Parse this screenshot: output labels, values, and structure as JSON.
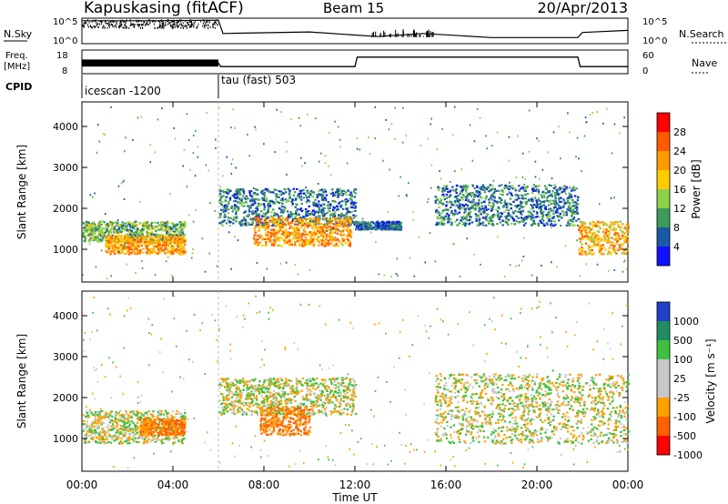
{
  "header": {
    "station": "Kapuskasing (fitACF)",
    "beam": "Beam 15",
    "date": "20/Apr/2013"
  },
  "top_panels": {
    "nsky_label": "N.Sky",
    "nsearch_label": "N.Search",
    "freq_label_1": "Freq.",
    "freq_label_2": "[MHz]",
    "nave_label": "Nave",
    "cpid_label": "CPID",
    "left_ticks_1": [
      "10^5",
      "10^0"
    ],
    "right_ticks_1": [
      "10^5",
      "10^0"
    ],
    "left_ticks_2": [
      "18",
      "8"
    ],
    "right_ticks_2": [
      "60",
      "0"
    ],
    "cpid_segments": [
      {
        "label": "icescan -1200",
        "start_hour": 0,
        "end_hour": 6
      },
      {
        "label": "tau (fast) 503",
        "start_hour": 6,
        "end_hour": 24
      }
    ]
  },
  "time_axis": {
    "label": "Time UT",
    "ticks": [
      "00:00",
      "04:00",
      "08:00",
      "12:00",
      "16:00",
      "20:00",
      "00:00"
    ],
    "tick_hours": [
      0,
      4,
      8,
      12,
      16,
      20,
      24
    ]
  },
  "range_axis": {
    "label": "Slant Range [km]",
    "ticks": [
      "1000",
      "2000",
      "3000",
      "4000"
    ],
    "tick_values": [
      1000,
      2000,
      3000,
      4000
    ],
    "ylim": [
      200,
      4600
    ]
  },
  "power_scale": {
    "label": "Power [dB]",
    "ticks": [
      "28",
      "24",
      "20",
      "16",
      "12",
      "8",
      "4"
    ],
    "colors": [
      "#ff0000",
      "#ff5a00",
      "#ff9a00",
      "#ffcc00",
      "#8fd24a",
      "#3c9a5a",
      "#1a5aa6",
      "#1010ff"
    ]
  },
  "velocity_scale": {
    "label": "Velocity [m s⁻¹]",
    "ticks": [
      "1000",
      "500",
      "100",
      "25",
      "-25",
      "-100",
      "-500",
      "-1000"
    ],
    "colors": [
      "#2040c8",
      "#208c60",
      "#40c040",
      "#c8c8c8",
      "#c8c8c8",
      "#ffa000",
      "#ff6000",
      "#ff0000"
    ]
  },
  "chart_data": [
    {
      "type": "line",
      "title": "N.Sky / N.Search",
      "xlim": [
        0,
        24
      ],
      "series": [
        {
          "name": "N.Sky",
          "x": [
            0,
            3,
            6,
            6.2,
            10,
            13,
            15,
            18,
            21.8,
            22,
            24
          ],
          "y": [
            4.5,
            4.5,
            4.6,
            2.0,
            2.3,
            1.4,
            2.0,
            1.2,
            1.2,
            2.2,
            2.6
          ]
        }
      ]
    },
    {
      "type": "line",
      "title": "Freq. [MHz] / Nave",
      "xlim": [
        0,
        24
      ],
      "series": [
        {
          "name": "Freq.",
          "x": [
            0,
            6,
            6.1,
            12,
            12.1,
            21.8,
            21.9,
            24
          ],
          "y": [
            12.5,
            12.5,
            11,
            11,
            15,
            15,
            11,
            11
          ]
        },
        {
          "name": "Nave",
          "x": [
            6.1,
            22
          ],
          "y": [
            8,
            8
          ]
        }
      ]
    },
    {
      "type": "heatmap",
      "title": "Power [dB]",
      "x_label": "Time UT",
      "y_label": "Slant Range [km]",
      "xlim": [
        0,
        24
      ],
      "ylim": [
        200,
        4600
      ],
      "features": [
        {
          "start_hour": 0,
          "end_hour": 4.5,
          "range_km": [
            1200,
            1700
          ],
          "power_db": 10
        },
        {
          "start_hour": 1,
          "end_hour": 4.5,
          "range_km": [
            900,
            1350
          ],
          "power_db": 20
        },
        {
          "start_hour": 6,
          "end_hour": 12,
          "range_km": [
            1600,
            2500
          ],
          "power_db": 6
        },
        {
          "start_hour": 7.5,
          "end_hour": 11.8,
          "range_km": [
            1100,
            1800
          ],
          "power_db": 20
        },
        {
          "start_hour": 12,
          "end_hour": 14,
          "range_km": [
            1500,
            1700
          ],
          "power_db": 5
        },
        {
          "start_hour": 15.5,
          "end_hour": 21.8,
          "range_km": [
            1600,
            2600
          ],
          "power_db": 6
        },
        {
          "start_hour": 21.8,
          "end_hour": 24,
          "range_km": [
            900,
            1700
          ],
          "power_db": 18
        }
      ]
    },
    {
      "type": "heatmap",
      "title": "Velocity [m s⁻¹]",
      "x_label": "Time UT",
      "y_label": "Slant Range [km]",
      "xlim": [
        0,
        24
      ],
      "ylim": [
        200,
        4600
      ],
      "features": [
        {
          "start_hour": 0,
          "end_hour": 4.5,
          "range_km": [
            900,
            1700
          ],
          "velocity": 0
        },
        {
          "start_hour": 2.5,
          "end_hour": 4.5,
          "range_km": [
            1100,
            1500
          ],
          "velocity": -300
        },
        {
          "start_hour": 6,
          "end_hour": 12,
          "range_km": [
            1600,
            2500
          ],
          "velocity": 0
        },
        {
          "start_hour": 7.8,
          "end_hour": 10,
          "range_km": [
            1100,
            1800
          ],
          "velocity": -300
        },
        {
          "start_hour": 15.5,
          "end_hour": 24,
          "range_km": [
            900,
            2600
          ],
          "velocity": 0
        }
      ]
    }
  ]
}
